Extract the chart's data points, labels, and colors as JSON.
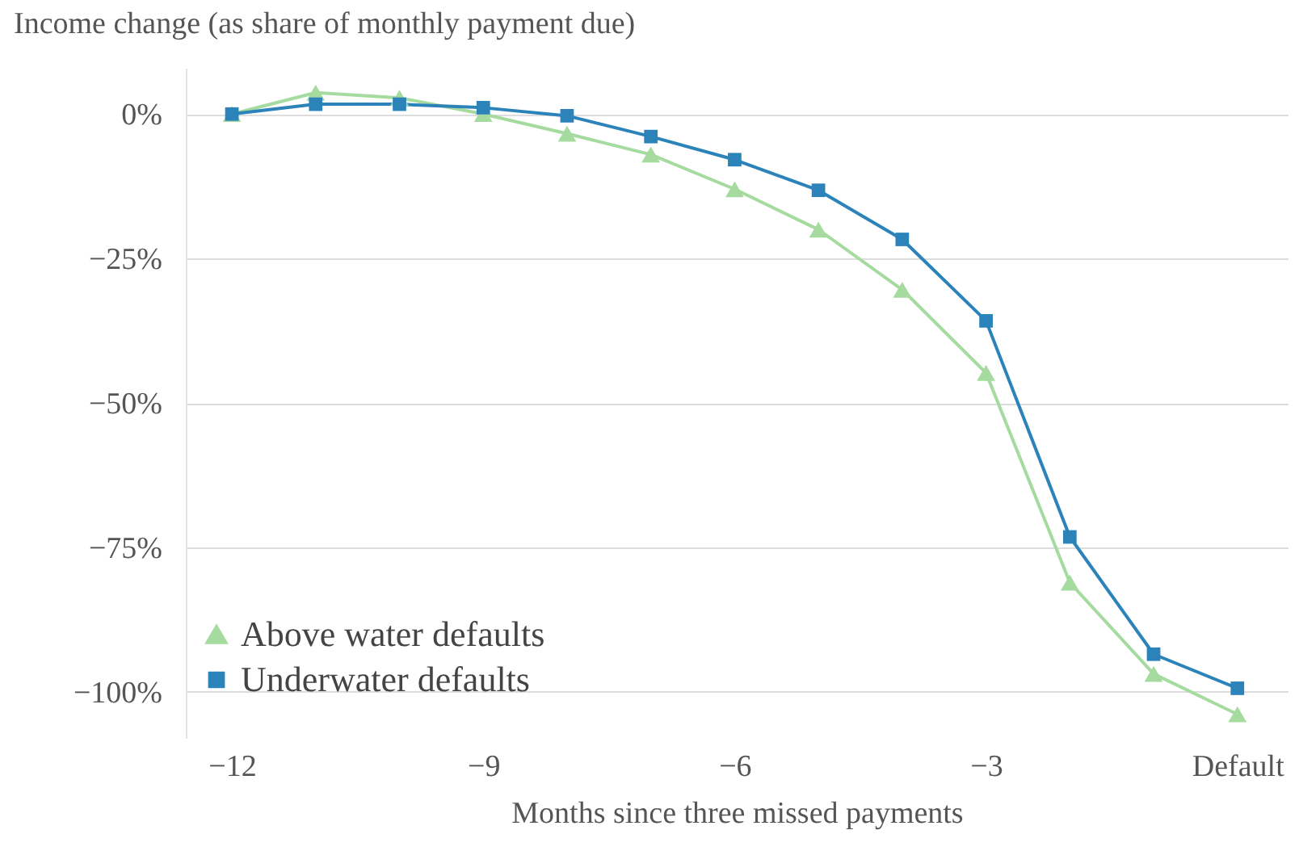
{
  "chart_data": {
    "type": "line",
    "ylabel": "Income change (as share of monthly payment due)",
    "xlabel": "Months since three missed payments",
    "x": [
      -12,
      -11,
      -10,
      -9,
      -8,
      -7,
      -6,
      -5,
      -4,
      -3,
      -2,
      -1,
      0
    ],
    "series": [
      {
        "name": "Above water defaults",
        "color": "#a6dba0",
        "marker": "triangle",
        "values": [
          0,
          3.7,
          2.8,
          0,
          -3.4,
          -7.0,
          -13.0,
          -20.0,
          -30.4,
          -44.8,
          -81.1,
          -96.9,
          -103.9
        ]
      },
      {
        "name": "Underwater defaults",
        "color": "#2b83ba",
        "marker": "square",
        "values": [
          0,
          1.7,
          1.7,
          1.1,
          -0.3,
          -3.9,
          -7.9,
          -13.2,
          -21.7,
          -35.8,
          -73.2,
          -93.5,
          -99.4
        ]
      }
    ],
    "xlim": [
      -12.55,
      0.6
    ],
    "ylim": [
      -108,
      8
    ],
    "xticks": [
      {
        "value": -12,
        "label": "−12"
      },
      {
        "value": -9,
        "label": "−9"
      },
      {
        "value": -6,
        "label": "−6"
      },
      {
        "value": -3,
        "label": "−3"
      },
      {
        "value": 0,
        "label": "Default"
      }
    ],
    "yticks": [
      {
        "value": -100,
        "label": "−100%"
      },
      {
        "value": -75,
        "label": "−75%"
      },
      {
        "value": -50,
        "label": "−50%"
      },
      {
        "value": -25,
        "label": "−25%"
      },
      {
        "value": 0,
        "label": "0%"
      }
    ],
    "grid": "y",
    "legend": "bottom left",
    "line_style": "solid"
  }
}
